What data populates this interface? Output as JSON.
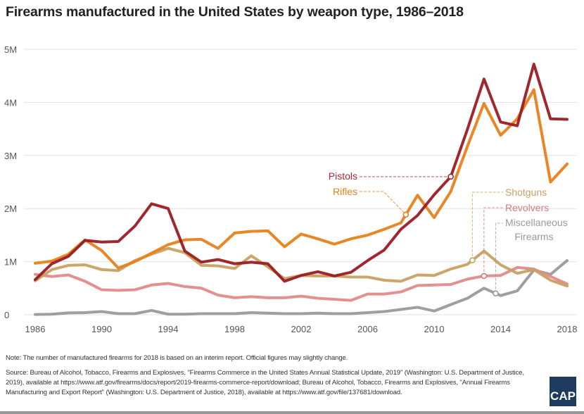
{
  "chart_data": {
    "type": "line",
    "title": "Firearms manufactured in the United States by weapon type, 1986–2018",
    "xlabel": "",
    "ylabel": "",
    "xlim": [
      1986,
      2018
    ],
    "ylim": [
      0,
      5000000
    ],
    "grid": true,
    "x_ticks": [
      "1986",
      "1990",
      "1994",
      "1998",
      "2002",
      "2006",
      "2010",
      "2014",
      "2018"
    ],
    "y_ticks": [
      {
        "value": 0,
        "label": "0"
      },
      {
        "value": 1000000,
        "label": "1M"
      },
      {
        "value": 2000000,
        "label": "2M"
      },
      {
        "value": 3000000,
        "label": "3M"
      },
      {
        "value": 4000000,
        "label": "4M"
      },
      {
        "value": 5000000,
        "label": "5M"
      }
    ],
    "x": [
      1986,
      1987,
      1988,
      1989,
      1990,
      1991,
      1992,
      1993,
      1994,
      1995,
      1996,
      1997,
      1998,
      1999,
      2000,
      2001,
      2002,
      2003,
      2004,
      2005,
      2006,
      2007,
      2008,
      2009,
      2010,
      2011,
      2012,
      2013,
      2014,
      2015,
      2016,
      2017,
      2018
    ],
    "series": [
      {
        "name": "Pistols",
        "color": "#9b1b22",
        "label_color": "#a8283a",
        "label_year": 2011,
        "values": [
          0.66,
          0.96,
          1.1,
          1.4,
          1.37,
          1.38,
          1.67,
          2.09,
          2.0,
          1.2,
          0.99,
          1.04,
          0.96,
          0.99,
          0.96,
          0.63,
          0.74,
          0.81,
          0.73,
          0.8,
          1.02,
          1.22,
          1.61,
          1.87,
          2.26,
          2.6,
          3.49,
          4.44,
          3.63,
          3.56,
          4.72,
          3.69,
          3.68
        ]
      },
      {
        "name": "Rifles",
        "color": "#e8801a",
        "label_color": "#e8801a",
        "label_year": 2008.3,
        "values": [
          0.97,
          1.01,
          1.14,
          1.41,
          1.21,
          0.88,
          1.0,
          1.16,
          1.32,
          1.41,
          1.42,
          1.25,
          1.54,
          1.57,
          1.58,
          1.28,
          1.52,
          1.43,
          1.33,
          1.43,
          1.5,
          1.61,
          1.73,
          2.25,
          1.83,
          2.32,
          3.17,
          3.98,
          3.38,
          3.69,
          4.24,
          2.5,
          2.84
        ]
      },
      {
        "name": "Shotguns",
        "color": "#c9a063",
        "label_color": "#c9a063",
        "label_year": 2012.3,
        "values": [
          0.64,
          0.85,
          0.93,
          0.94,
          0.85,
          0.83,
          1.02,
          1.14,
          1.25,
          1.17,
          0.93,
          0.92,
          0.87,
          1.11,
          0.9,
          0.68,
          0.74,
          0.73,
          0.73,
          0.71,
          0.71,
          0.65,
          0.63,
          0.75,
          0.74,
          0.86,
          0.95,
          1.2,
          0.94,
          0.78,
          0.85,
          0.65,
          0.54
        ]
      },
      {
        "name": "Revolvers",
        "color": "#e08a8a",
        "label_color": "#d9797c",
        "label_year": 2013,
        "values": [
          0.76,
          0.72,
          0.75,
          0.63,
          0.47,
          0.46,
          0.47,
          0.56,
          0.59,
          0.53,
          0.5,
          0.37,
          0.32,
          0.34,
          0.32,
          0.32,
          0.35,
          0.31,
          0.29,
          0.27,
          0.39,
          0.39,
          0.43,
          0.55,
          0.56,
          0.57,
          0.67,
          0.73,
          0.74,
          0.89,
          0.86,
          0.72,
          0.58
        ]
      },
      {
        "name": "Miscellaneous Firearms",
        "color": "#9a9a9a",
        "label_color": "#9a9a9a",
        "label_year": 2013.7,
        "values": [
          0.005,
          0.01,
          0.035,
          0.04,
          0.06,
          0.02,
          0.02,
          0.08,
          0.01,
          0.01,
          0.02,
          0.02,
          0.02,
          0.04,
          0.03,
          0.02,
          0.02,
          0.03,
          0.02,
          0.02,
          0.04,
          0.06,
          0.1,
          0.14,
          0.07,
          0.19,
          0.31,
          0.5,
          0.36,
          0.45,
          0.84,
          0.76,
          1.02
        ]
      }
    ],
    "values_unit": "millions",
    "legend": "inline labels"
  },
  "labels": {
    "pistols": "Pistols",
    "rifles": "Rifles",
    "shotguns": "Shotguns",
    "revolvers": "Revolvers",
    "misc_line1": "Miscellaneous",
    "misc_line2": "Firearms"
  },
  "note": "Note: The number of manufactured firearms for 2018 is based on an interim report. Official figures may slightly change.",
  "source": "Source: Bureau of Alcohol, Tobacco, Firearms and Explosives, \"Firearms Commerce in the United States Annual Statistical Update, 2019\" (Washington: U.S. Department of Justice, 2019), available at https://www.atf.gov/firearms/docs/report/2019-firearms-commerce-report/download; Bureau of Alcohol, Tobacco, Firearms and Explosives, \"Annual Firearms Manufacturing and Export Report\" (Washington: U.S. Department of Justice, 2018), available at https://www.atf.gov/file/137681/download.",
  "logo": "CAP"
}
